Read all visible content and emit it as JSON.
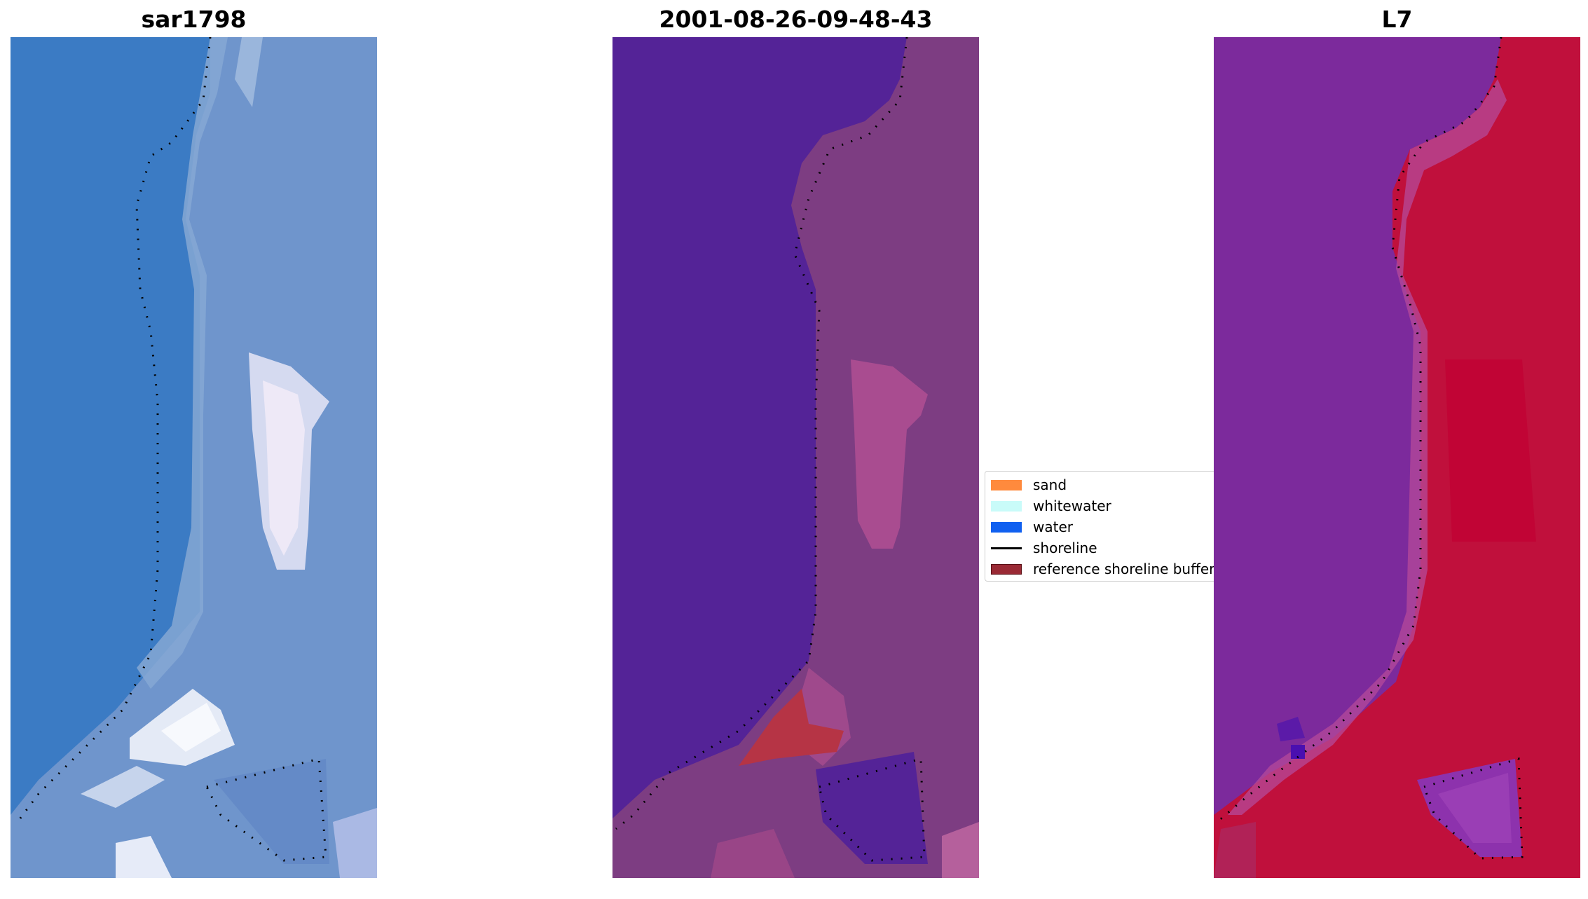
{
  "panels": [
    {
      "title": "sar1798"
    },
    {
      "title": "2001-08-26-09-48-43"
    },
    {
      "title": "L7"
    }
  ],
  "legend": {
    "items": [
      {
        "label": "sand",
        "color": "#ff8a3d",
        "kind": "patch"
      },
      {
        "label": "whitewater",
        "color": "#c9fbf9",
        "kind": "patch"
      },
      {
        "label": "water",
        "color": "#1060f0",
        "kind": "patch"
      },
      {
        "label": "shoreline",
        "color": "#000000",
        "kind": "line"
      },
      {
        "label": "reference shoreline buffer",
        "color": "#9a2a35",
        "kind": "patch"
      }
    ]
  },
  "colors": {
    "rgb_water": "#3b7bc4",
    "rgb_beach": "#7a9ed0",
    "rgb_whitewater": "#eef0fa",
    "classified_water": "#542397",
    "classified_land": "#7d3d82",
    "classified_buffer": "#b63445",
    "l7_water": "#7c2a9c",
    "l7_land": "#c0103c",
    "bottom_strip": "#c36095"
  }
}
